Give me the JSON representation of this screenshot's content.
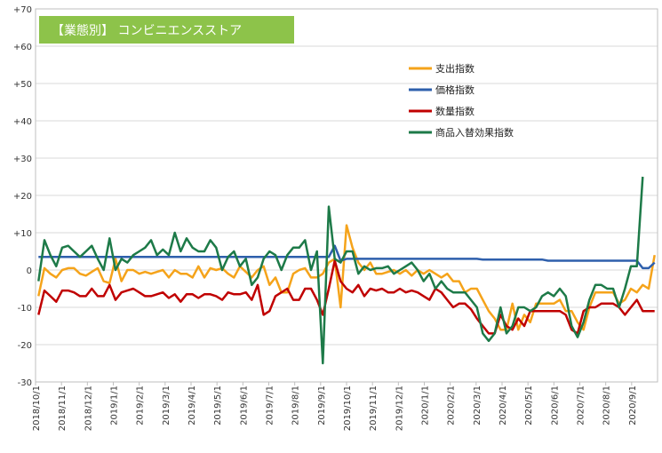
{
  "chart_data": {
    "type": "line",
    "title": "【業態別】 コンビニエンスストア",
    "title_bg_color": "#8dc34a",
    "ylim": [
      -30,
      70
    ],
    "yticks": [
      "-30",
      "-20",
      "-10",
      "0",
      "+10",
      "+20",
      "+30",
      "+40",
      "+50",
      "+60",
      "+70"
    ],
    "x_labels": [
      "2018/10/1",
      "2018/11/1",
      "2018/12/1",
      "2019/1/1",
      "2019/2/1",
      "2019/3/1",
      "2019/4/1",
      "2019/5/1",
      "2019/6/1",
      "2019/7/1",
      "2019/8/1",
      "2019/9/1",
      "2019/10/1",
      "2019/11/1",
      "2019/12/1",
      "2020/1/1",
      "2020/2/1",
      "2020/3/1",
      "2020/4/1",
      "2020/5/1",
      "2020/6/1",
      "2020/7/1",
      "2020/8/1",
      "2020/9/1"
    ],
    "n_points": 105,
    "legend_position": "right",
    "series": [
      {
        "name": "支出指数",
        "color": "#f5a31a",
        "values": [
          -7,
          0.5,
          -1,
          -2,
          0,
          0.5,
          0.5,
          -1,
          -1.5,
          -0.5,
          0.5,
          -3,
          -3.5,
          3,
          -3,
          0,
          0,
          -1,
          -0.5,
          -1,
          -0.5,
          0,
          -2,
          0,
          -1,
          -1,
          -2,
          1,
          -2,
          0.5,
          0,
          0.5,
          -1,
          -2,
          1,
          -0.5,
          -2,
          0,
          1,
          -4,
          -2,
          -6,
          -6,
          -1,
          0,
          0.5,
          -2,
          -2,
          -1,
          2,
          3,
          -10,
          12,
          6,
          2,
          0,
          2,
          -1,
          -1,
          -0.5,
          0,
          -1,
          0,
          -1.5,
          0,
          -1,
          0,
          -1,
          -2,
          -1,
          -3,
          -3,
          -6,
          -5,
          -5,
          -8,
          -11,
          -13,
          -16,
          -16,
          -9,
          -16,
          -12,
          -14,
          -9,
          -9,
          -9,
          -9,
          -8,
          -11,
          -11,
          -14,
          -16,
          -10,
          -6,
          -6,
          -6,
          -6,
          -9,
          -8,
          -5,
          -6,
          -4,
          -5,
          4
        ]
      },
      {
        "name": "価格指数",
        "color": "#2e5fac",
        "values": [
          3.5,
          3.5,
          3.5,
          3.5,
          3.5,
          3.5,
          3.5,
          3.5,
          3.5,
          3.5,
          3.5,
          3.5,
          3.5,
          3.5,
          3.5,
          3.5,
          3.5,
          3.5,
          3.5,
          3.5,
          3.5,
          3.5,
          3.5,
          3.5,
          3.5,
          3.5,
          3.5,
          3.5,
          3.5,
          3.5,
          3.5,
          3.5,
          3.5,
          3.5,
          3.5,
          3.5,
          3.5,
          3.5,
          3.5,
          3.5,
          3.5,
          3.5,
          3.5,
          3.5,
          3.5,
          3.5,
          3.5,
          3.5,
          3.5,
          3.5,
          6.5,
          2.5,
          3,
          3,
          3,
          3,
          3,
          3,
          3,
          3,
          3,
          3,
          3,
          3,
          3,
          3,
          3,
          3,
          3,
          3,
          3,
          3,
          3,
          3,
          3,
          2.8,
          2.8,
          2.8,
          2.8,
          2.8,
          2.8,
          2.8,
          2.8,
          2.8,
          2.8,
          2.8,
          2.5,
          2.5,
          2.5,
          2.5,
          2.5,
          2.5,
          2.5,
          2.5,
          2.5,
          2.5,
          2.5,
          2.5,
          2.5,
          2.5,
          2.5,
          2.5,
          0.5,
          0.5,
          2
        ]
      },
      {
        "name": "数量指数",
        "color": "#c00000",
        "values": [
          -12,
          -5.5,
          -7,
          -8.5,
          -5.5,
          -5.5,
          -6,
          -7,
          -7,
          -5,
          -7,
          -7,
          -4,
          -8,
          -6,
          -5.5,
          -5,
          -6,
          -7,
          -7,
          -6.5,
          -6,
          -7.5,
          -6.5,
          -8.5,
          -6.5,
          -6.5,
          -7.5,
          -6.5,
          -6.5,
          -7,
          -8,
          -6,
          -6.5,
          -6.5,
          -6,
          -8,
          -4,
          -12,
          -11,
          -7,
          -6,
          -5,
          -8,
          -8,
          -5,
          -5,
          -8,
          -12,
          -5,
          2.5,
          -3,
          -5,
          -6,
          -4,
          -7,
          -5,
          -5.5,
          -5,
          -6,
          -6,
          -5,
          -6,
          -5.5,
          -6,
          -7,
          -8,
          -5,
          -6,
          -8,
          -10,
          -9,
          -9,
          -10.5,
          -13,
          -15,
          -17,
          -17,
          -12,
          -15,
          -16,
          -13,
          -15,
          -11,
          -11,
          -11,
          -11,
          -11,
          -11,
          -12,
          -16,
          -17,
          -11,
          -10,
          -10,
          -9,
          -9,
          -9,
          -10,
          -12,
          -10,
          -8,
          -11,
          -11,
          -11
        ]
      },
      {
        "name": "商品入替効果指数",
        "color": "#1d7a48",
        "values": [
          -3,
          8,
          4,
          1,
          6,
          6.5,
          5,
          3.5,
          5,
          6.5,
          3,
          0,
          8.5,
          0,
          3,
          2,
          4,
          5,
          6,
          8,
          4,
          5.5,
          4,
          10,
          5,
          8.5,
          6,
          5,
          5,
          8,
          6,
          0,
          3.5,
          5,
          1,
          3,
          -4,
          -2,
          3,
          5,
          4,
          0,
          4,
          6,
          6,
          8,
          0,
          5,
          -25,
          17,
          3,
          2,
          5,
          5,
          -1,
          1,
          0,
          0.5,
          0.5,
          1,
          -1,
          0,
          1,
          2,
          0,
          -3,
          -1,
          -5,
          -3,
          -5,
          -6,
          -6,
          -6,
          -8,
          -10,
          -17,
          -19,
          -17,
          -10,
          -17,
          -15,
          -10,
          -10,
          -11,
          -10,
          -7,
          -6,
          -7,
          -5,
          -7,
          -15,
          -18,
          -14,
          -8,
          -4,
          -4,
          -5,
          -5,
          -10,
          -5,
          1,
          1,
          25
        ]
      }
    ]
  }
}
